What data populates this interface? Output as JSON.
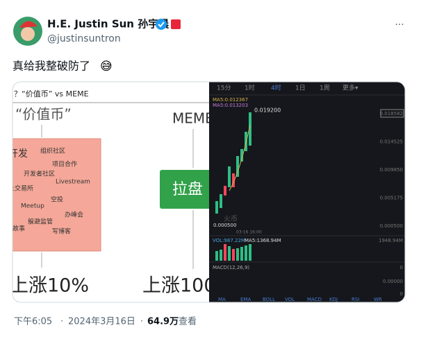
{
  "tweet": {
    "author": {
      "name": "H.E. Justin Sun 孙宇晨",
      "handle": "@justinsuntron"
    },
    "more": "···",
    "text": "真给我整破防了",
    "emoji": "😅"
  },
  "media": {
    "left": {
      "header": "？“价值币” vs MEME",
      "value_coin": "“价值币”",
      "activities": [
        "开发",
        "组织社区",
        "项目合作",
        "开发者社区",
        "Livestream",
        "上交易所",
        "空投",
        "Meetup",
        "办峰会",
        "躲避监管",
        "写博客",
        "故事"
      ],
      "meme": "MEME",
      "pump": "拉盘",
      "value_result": "上涨10%",
      "meme_result": "上涨100"
    },
    "right": {
      "tabs": [
        "15分",
        "1时",
        "4时",
        "1日",
        "1周",
        "更多▾"
      ],
      "ma_lines": [
        "MA5:0.012367",
        "MA5:0.013203"
      ],
      "high_label": "0.019200",
      "low_label": "0.000500",
      "price_ticks": [
        "0.018582",
        "0.014525",
        "0.009850",
        "0.005175",
        "0.000500"
      ],
      "watermark": "火币",
      "time_label": "03-16 16:00",
      "vol_label": "VOL:987.22M",
      "vol_ma": "MA5:1368.94M",
      "vol_tick": "1948.94M",
      "macd_label": "MACD(12,26,9)",
      "macd_ticks": [
        "0",
        "0.00000",
        "0"
      ],
      "indicators": [
        "MA",
        "EMA",
        "BOLL",
        "VOL",
        "MACD",
        "KDJ",
        "RSI",
        "WR"
      ]
    }
  },
  "meta": {
    "time": "下午6:05",
    "separator": "·",
    "date": "2024年3月16日",
    "views": "64.9万",
    "views_label": "查看"
  }
}
